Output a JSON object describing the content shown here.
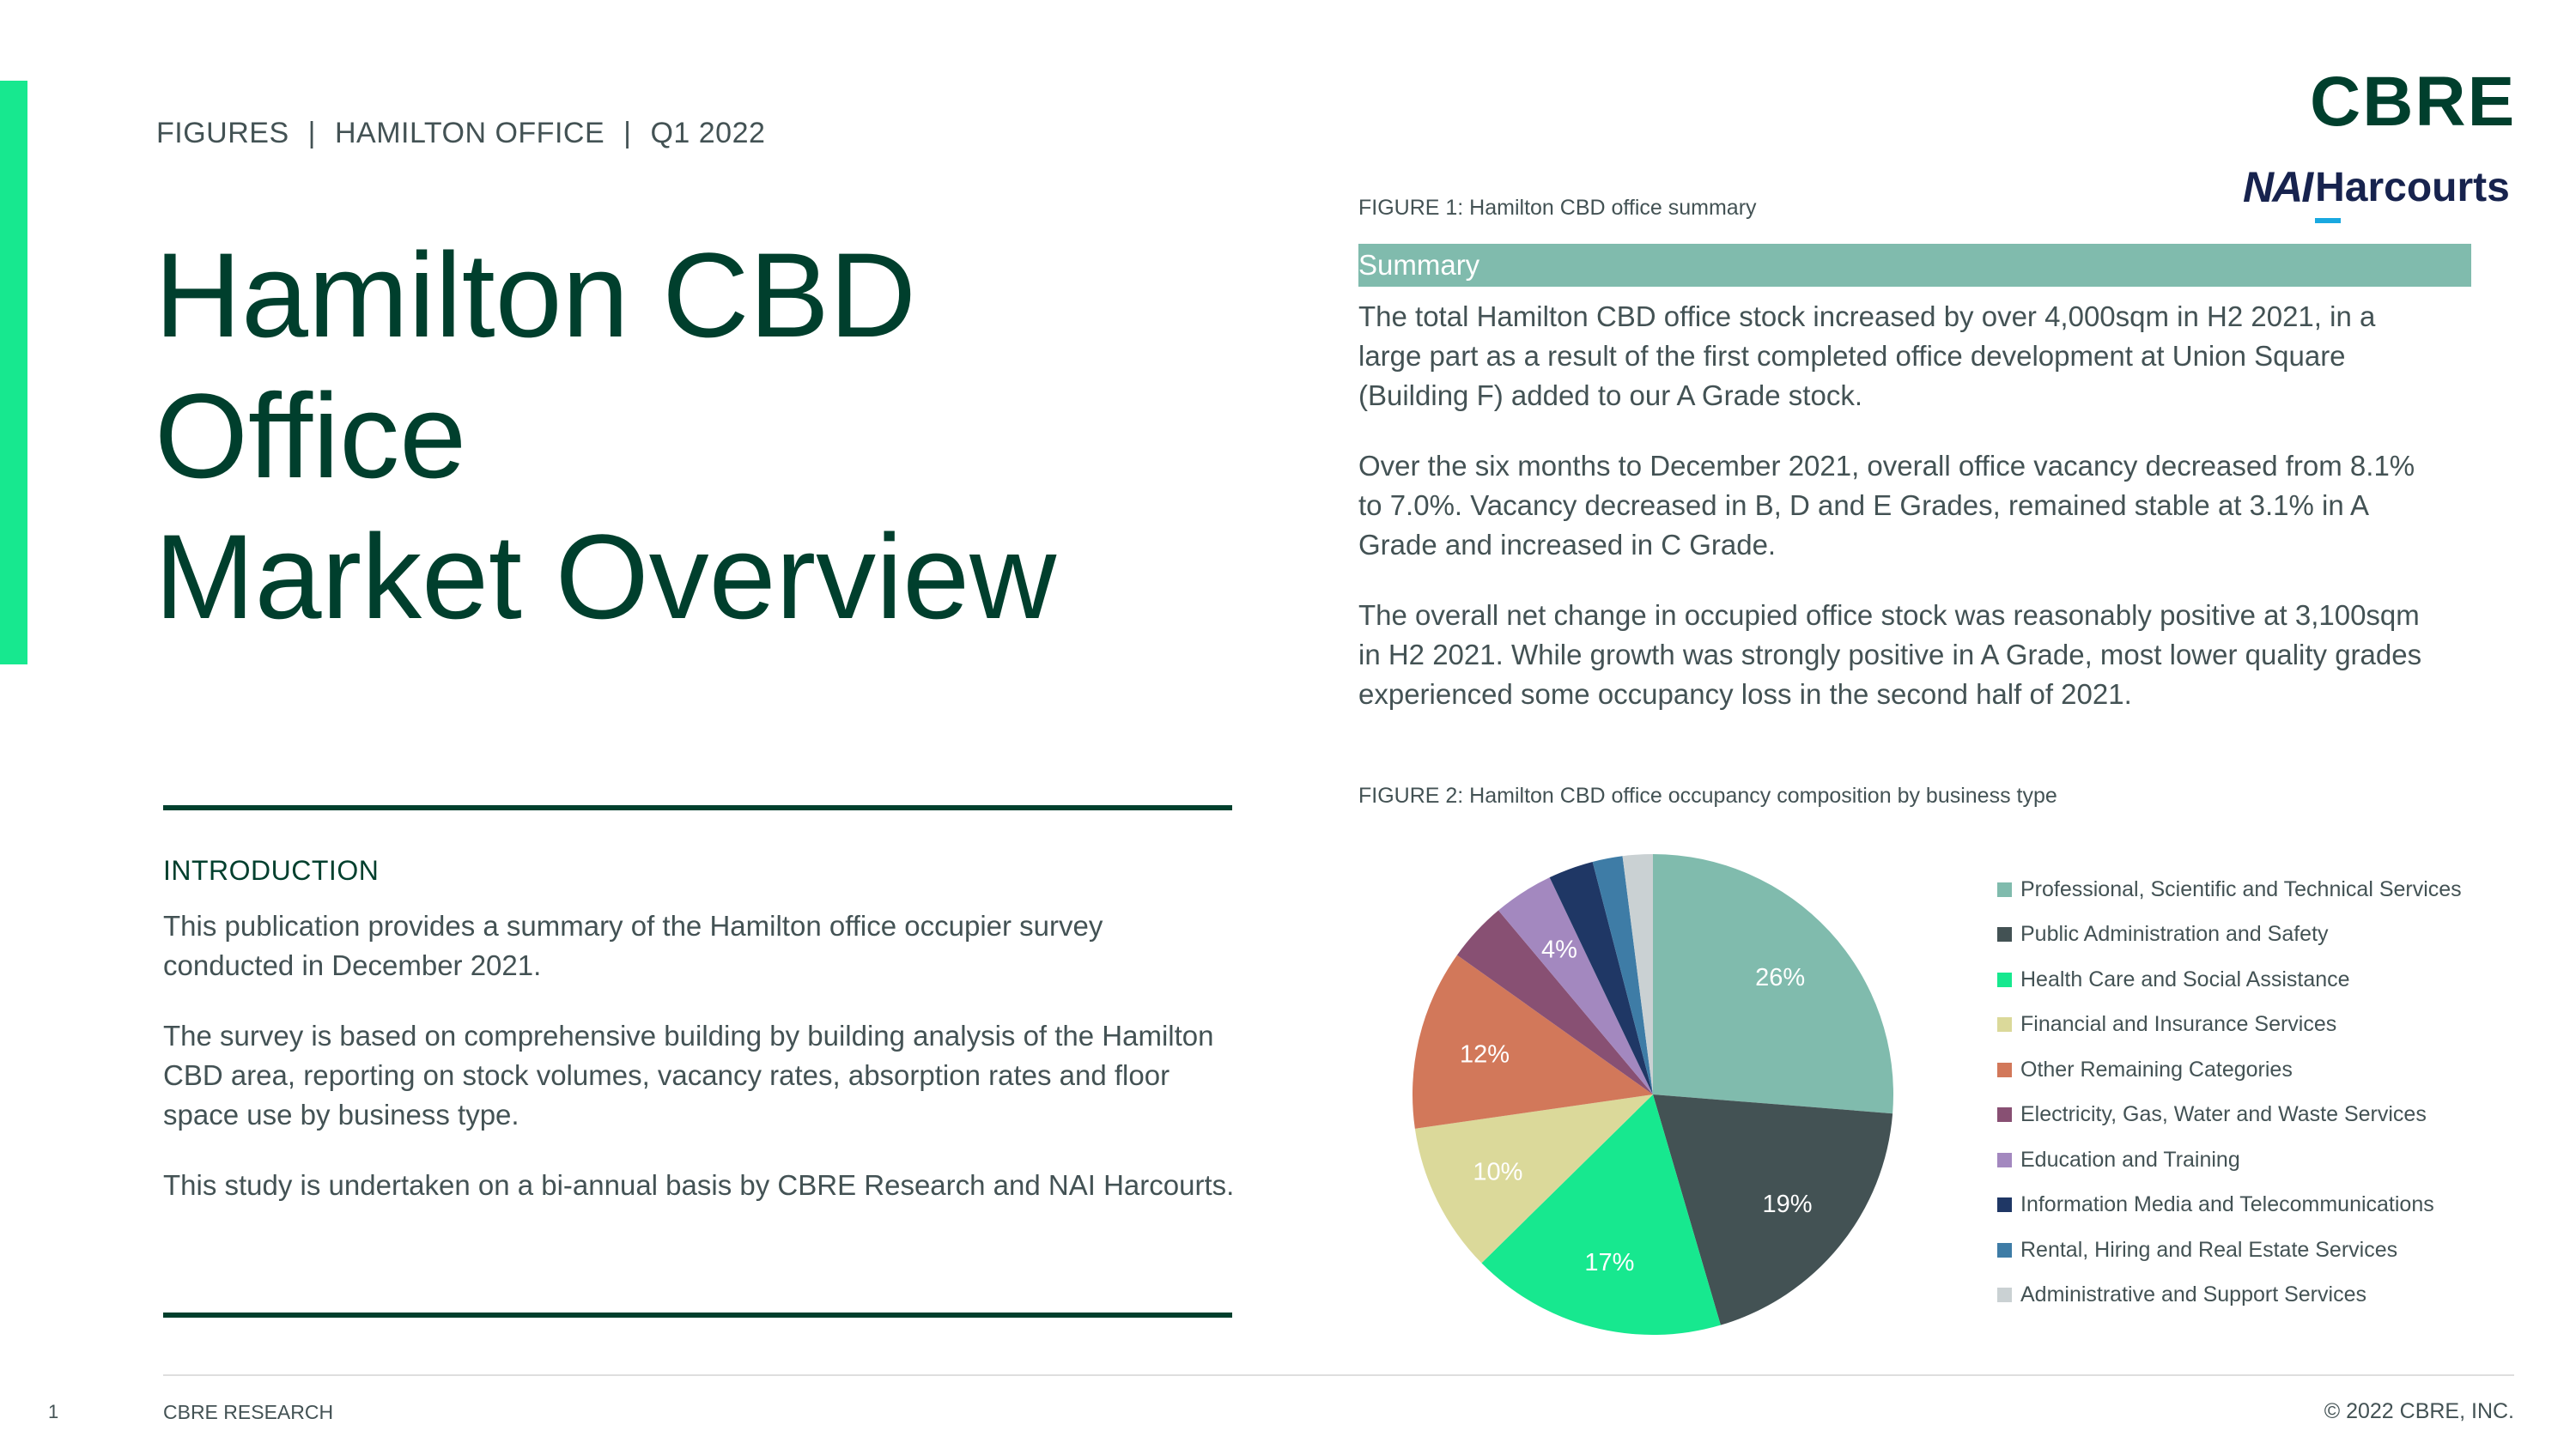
{
  "header": {
    "breadcrumb": [
      "FIGURES",
      "HAMILTON OFFICE",
      "Q1 2022"
    ],
    "breadcrumb_separator": "|"
  },
  "title": {
    "lines": [
      "Hamilton CBD",
      "Office",
      "Market Overview"
    ]
  },
  "logos": {
    "cbre": "CBRE",
    "nai_prefix": "NAI",
    "harcourts": "Harcourts"
  },
  "introduction": {
    "heading": "INTRODUCTION",
    "paragraphs": [
      "This publication provides a summary of the Hamilton office occupier survey conducted in December 2021.",
      "The survey is based on comprehensive building by building analysis of the Hamilton CBD area, reporting on stock volumes, vacancy rates, absorption rates and floor space use by business type.",
      "This study is undertaken on a bi-annual basis by CBRE Research and NAI Harcourts."
    ]
  },
  "figure1": {
    "caption": "FIGURE 1: Hamilton CBD office summary",
    "header": "Summary",
    "paragraphs": [
      "The total Hamilton CBD office stock increased by over 4,000sqm in H2 2021, in a large part as a result of the first completed office development at Union Square (Building F) added to our A Grade stock.",
      "Over the six months to December 2021, overall office vacancy decreased from 8.1% to 7.0%. Vacancy decreased in B, D and E Grades, remained stable at 3.1% in A Grade and increased in C Grade.",
      "The overall net change in occupied office stock was reasonably positive at 3,100sqm in H2 2021.  While growth was strongly positive in A Grade, most lower quality grades experienced some occupancy loss in the second half of 2021."
    ]
  },
  "figure2": {
    "caption": "FIGURE 2: Hamilton CBD office occupancy composition by business type"
  },
  "chart_data": {
    "type": "pie",
    "title": "FIGURE 2: Hamilton CBD office occupancy composition by business type",
    "legend_position": "right",
    "start": "12 o'clock, clockwise",
    "categories": [
      "Professional, Scientific and Technical Services",
      "Public Administration and Safety",
      "Health Care and Social Assistance",
      "Financial and Insurance Services",
      "Other Remaining Categories",
      "Electricity, Gas, Water and Waste Services",
      "Education and Training",
      "Information Media and Telecommunications",
      "Rental, Hiring and Real Estate Services",
      "Administrative and Support Services"
    ],
    "values": [
      26,
      19,
      17,
      10,
      12,
      4,
      4,
      3,
      2,
      2
    ],
    "data_labels": [
      "26%",
      "19%",
      "17%",
      "10%",
      "12%",
      "",
      "4%",
      "",
      "",
      ""
    ],
    "colors": [
      "#80bbad",
      "#435254",
      "#17e88f",
      "#dbd99a",
      "#d2785a",
      "#885073",
      "#a388bf",
      "#1f3765",
      "#3e7ca6",
      "#cad1d3"
    ],
    "label_color": "#ffffff"
  },
  "footer": {
    "page_number": "1",
    "left": "CBRE RESEARCH",
    "right": "© 2022 CBRE, INC."
  }
}
